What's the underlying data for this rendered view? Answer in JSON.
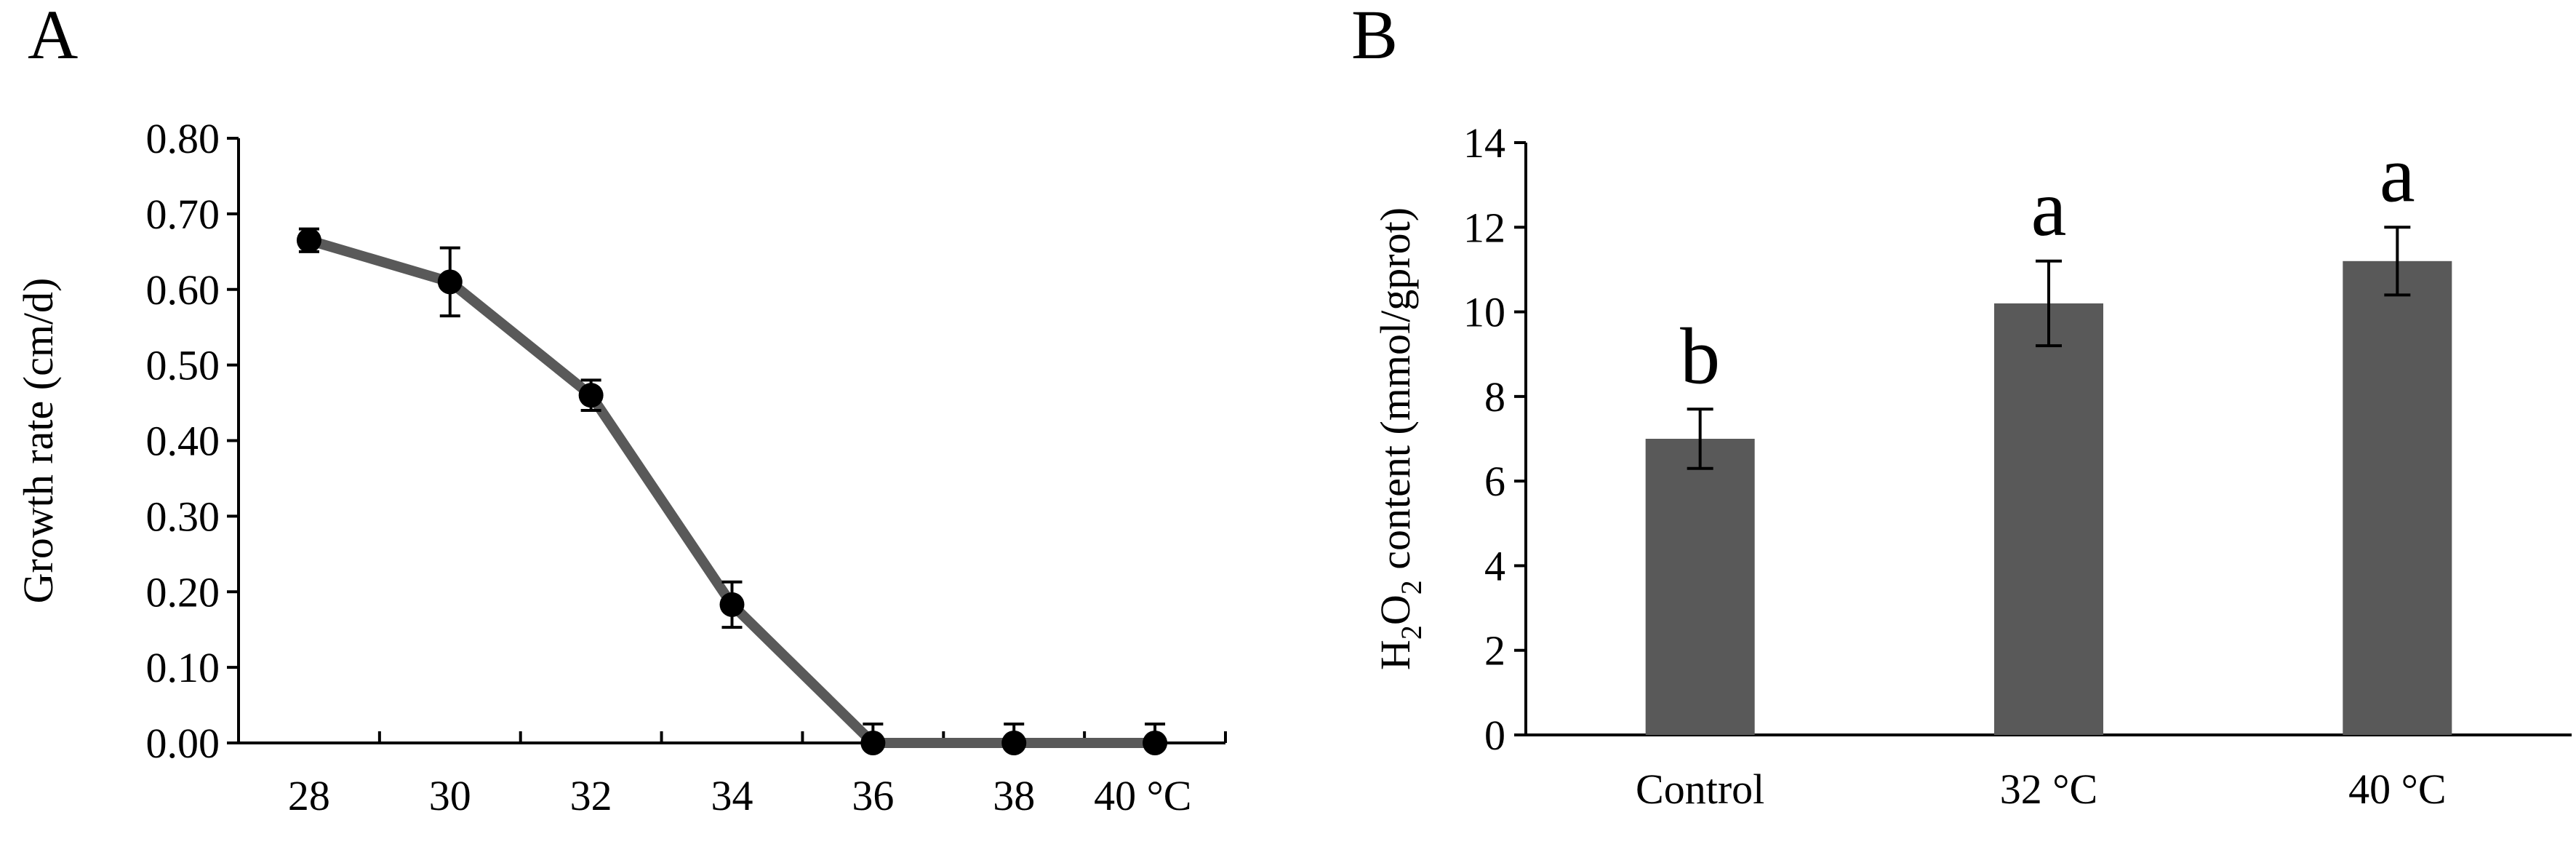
{
  "colors": {
    "series": "#595959",
    "marker": "#000000",
    "axis": "#000000"
  },
  "chart_data": [
    {
      "panel_label": "A",
      "type": "line",
      "title": "",
      "xlabel": "",
      "ylabel": "Growth rate (cm/d)",
      "x_tick_labels": [
        "28",
        "30",
        "32",
        "34",
        "36",
        "38",
        "40 °C"
      ],
      "x": [
        28,
        30,
        32,
        34,
        36,
        38,
        40
      ],
      "y_tick_labels": [
        "0.00",
        "0.10",
        "0.20",
        "0.30",
        "0.40",
        "0.50",
        "0.60",
        "0.70",
        "0.80"
      ],
      "ylim": [
        0,
        0.8
      ],
      "series": [
        {
          "name": "Growth rate",
          "values": [
            0.665,
            0.61,
            0.46,
            0.183,
            0.0,
            0.0,
            0.0
          ],
          "errors": [
            0.015,
            0.045,
            0.02,
            0.03,
            0.025,
            0.025,
            0.025
          ]
        }
      ]
    },
    {
      "panel_label": "B",
      "type": "bar",
      "title": "",
      "xlabel": "",
      "ylabel_parts": [
        "H",
        "2",
        "O",
        "2",
        " content (mmol/gprot)"
      ],
      "categories": [
        "Control",
        "32 °C",
        "40 °C"
      ],
      "values": [
        7.0,
        10.2,
        11.2
      ],
      "errors": [
        0.7,
        1.0,
        0.8
      ],
      "significance": [
        "b",
        "a",
        "a"
      ],
      "y_tick_labels": [
        "0",
        "2",
        "4",
        "6",
        "8",
        "10",
        "12",
        "14"
      ],
      "ylim": [
        0,
        14
      ]
    }
  ]
}
